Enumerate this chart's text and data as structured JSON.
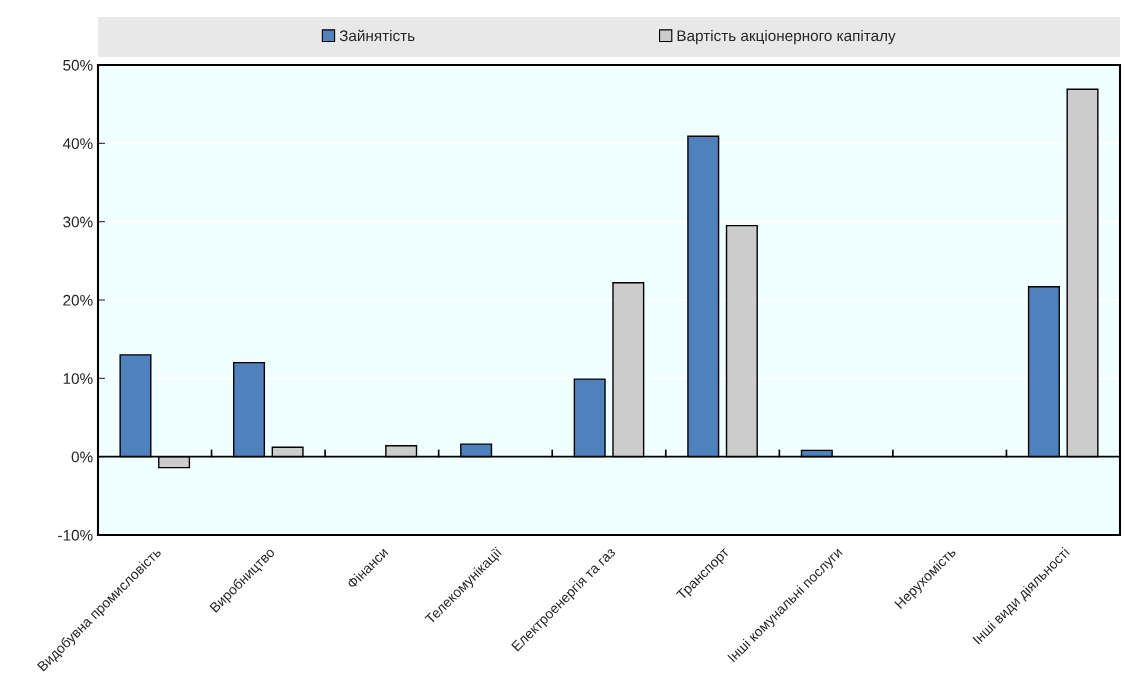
{
  "chart_data": {
    "type": "bar",
    "categories": [
      "Видобувна промисловість",
      "Виробництво",
      "Фінанси",
      "Телекомунікації",
      "Електроенергія та газ",
      "Транспорт",
      "Інші комунальні послуги",
      "Нерухомість",
      "Інші види діяльності"
    ],
    "series": [
      {
        "name": "Зайнятість",
        "color": "#4f81bd",
        "values": [
          13.0,
          12.0,
          null,
          1.6,
          9.9,
          40.9,
          0.8,
          null,
          21.7
        ]
      },
      {
        "name": "Вартість акціонерного капіталу",
        "color": "#cccccc",
        "values": [
          -1.4,
          1.2,
          1.4,
          null,
          22.2,
          29.5,
          null,
          null,
          46.9
        ]
      }
    ],
    "ylim": [
      -10,
      50
    ],
    "yticks": [
      {
        "value": -10,
        "label": "-10%"
      },
      {
        "value": 0,
        "label": "0%"
      },
      {
        "value": 10,
        "label": "10%"
      },
      {
        "value": 20,
        "label": "20%"
      },
      {
        "value": 30,
        "label": "30%"
      },
      {
        "value": 40,
        "label": "40%"
      },
      {
        "value": 50,
        "label": "50%"
      }
    ],
    "grid": "y",
    "legend": "top"
  }
}
